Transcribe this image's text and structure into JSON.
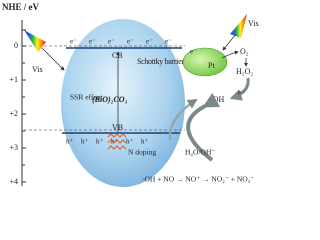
{
  "axis": {
    "title": "NHE / eV",
    "ticks": [
      "0",
      "+1",
      "+2",
      "+3",
      "+4"
    ]
  },
  "bands": {
    "cb": "CB",
    "vb": "VB"
  },
  "electrons": [
    "e⁻",
    "e⁻",
    "e⁻",
    "e⁻",
    "e⁻",
    "e⁻"
  ],
  "holes": [
    "h⁺",
    "h⁺",
    "h⁺",
    "h⁺",
    "h⁺",
    "h⁺"
  ],
  "labels": {
    "schottky": "Schottky barrier",
    "pt": "Pt",
    "vis_left": "Vis",
    "vis_right": "Vis",
    "ssr": "SSR effect",
    "material": "(BiO)₂CO₃",
    "n_doping": "N doping"
  },
  "reactions": {
    "o2": "O₂",
    "h2o2": "H₂O₂",
    "e_transfer": "e⁻",
    "oh_radical": "·OH",
    "h2o": "H₂O/OH⁻",
    "no_oxidation": "·OH + NO → NO⁺ → NO₂⁻ + NO₃⁻"
  }
}
